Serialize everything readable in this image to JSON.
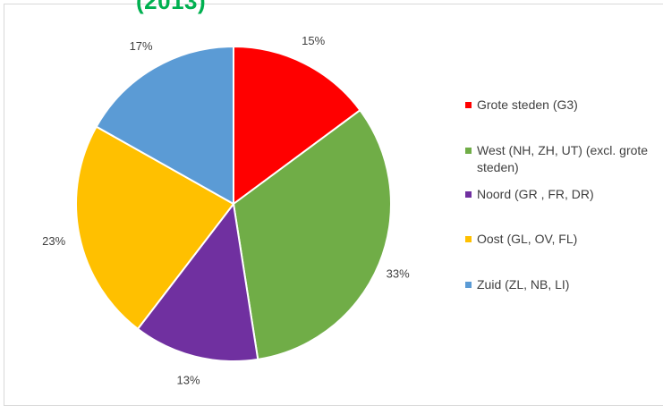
{
  "header": {
    "title_fragment": "(2013)"
  },
  "chart_data": {
    "type": "pie",
    "start_angle_deg": 0,
    "slices": [
      {
        "label": "Grote steden (G3)",
        "value": 15,
        "display": "15%",
        "color": "#ff0000"
      },
      {
        "label": "West (NH, ZH, UT) (excl. grote steden)",
        "value": 33,
        "display": "33%",
        "color": "#70ad47"
      },
      {
        "label": "Noord (GR , FR, DR)",
        "value": 13,
        "display": "13%",
        "color": "#7030a0"
      },
      {
        "label": "Oost (GL, OV, FL)",
        "value": 23,
        "display": "23%",
        "color": "#ffc000"
      },
      {
        "label": "Zuid (ZL, NB, LI)",
        "value": 17,
        "display": "17%",
        "color": "#5b9bd5"
      }
    ],
    "legend_position": "right"
  }
}
